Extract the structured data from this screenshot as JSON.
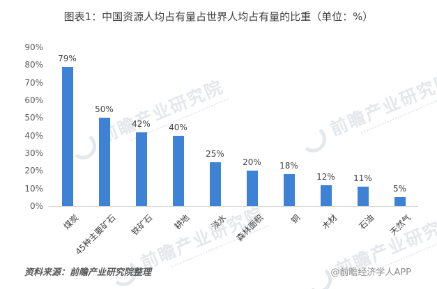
{
  "chart_data": {
    "type": "bar",
    "title": "图表1：中国资源人均占有量占世界人均占有量的比重（单位：%）",
    "categories": [
      "煤炭",
      "45种主要矿石",
      "铁矿石",
      "耕地",
      "淡水",
      "森林面积",
      "铜",
      "木材",
      "石油",
      "天然气"
    ],
    "values": [
      79,
      50,
      42,
      40,
      25,
      20,
      18,
      12,
      11,
      5
    ],
    "data_labels": [
      "79%",
      "50%",
      "42%",
      "40%",
      "25%",
      "20%",
      "18%",
      "12%",
      "11%",
      "5%"
    ],
    "xlabel": "",
    "ylabel": "",
    "ylim": [
      0,
      90
    ],
    "ytick_step": 10,
    "ytick_labels": [
      "0%",
      "10%",
      "20%",
      "30%",
      "40%",
      "50%",
      "60%",
      "70%",
      "80%",
      "90%"
    ],
    "grid": false,
    "legend": "none",
    "bar_color": "#3e82d6"
  },
  "watermark": {
    "text": "前瞻产业研究院"
  },
  "footer": {
    "source": "资料来源：前瞻产业研究院整理",
    "logo": "@前瞻经济学人APP"
  }
}
